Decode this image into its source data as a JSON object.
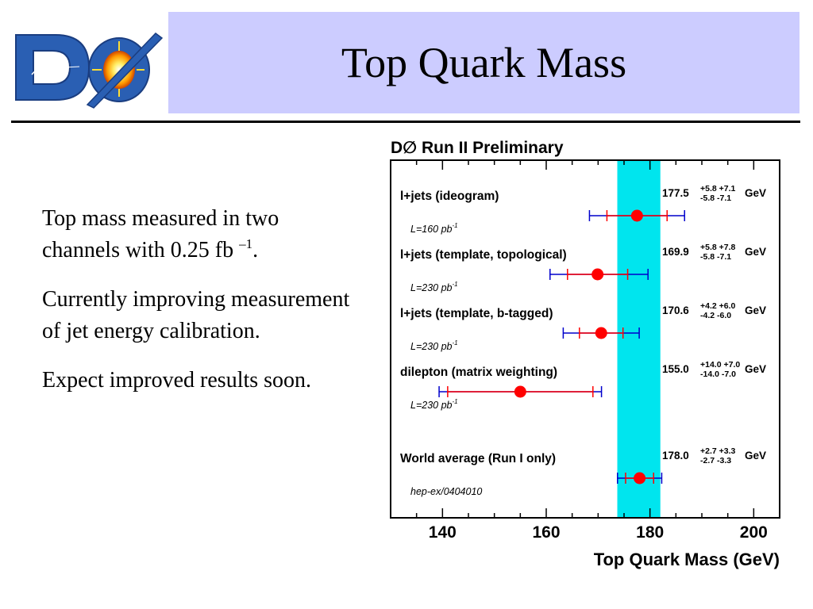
{
  "header": {
    "logo_text": "DØ",
    "title": "Top Quark Mass"
  },
  "bullets": [
    {
      "text": "Top mass measured in two channels with 0.25 fb ",
      "sup": "–1",
      "tail": "."
    },
    {
      "text": "Currently improving measurement of jet energy calibration.",
      "sup": "",
      "tail": ""
    },
    {
      "text": "Expect improved results soon.",
      "sup": "",
      "tail": ""
    }
  ],
  "chart_data": {
    "type": "scatter",
    "title": "D∅ Run II Preliminary",
    "xlabel": "Top Quark Mass (GeV)",
    "xlim": [
      130,
      205
    ],
    "xticks": [
      140,
      160,
      180,
      200
    ],
    "band": {
      "from": 173.7,
      "to": 182.0,
      "color": "#00e5ee"
    },
    "unit_label": "GeV",
    "measurements": [
      {
        "label": "l+jets (ideogram)",
        "lumi": "L=160 pb",
        "lumi_sup": "-1",
        "value": 177.5,
        "value_text": "177.5",
        "stat_plus": 5.8,
        "stat_minus": 5.8,
        "syst_plus": 7.1,
        "syst_minus": 7.1,
        "up_text": "+5.8  +7.1",
        "down_text": "-5.8  -7.1"
      },
      {
        "label": "l+jets (template, topological)",
        "lumi": "L=230 pb",
        "lumi_sup": "-1",
        "value": 169.9,
        "value_text": "169.9",
        "stat_plus": 5.8,
        "stat_minus": 5.8,
        "syst_plus": 7.8,
        "syst_minus": 7.1,
        "up_text": "+5.8  +7.8",
        "down_text": "-5.8  -7.1"
      },
      {
        "label": "l+jets (template, b-tagged)",
        "lumi": "L=230 pb",
        "lumi_sup": "-1",
        "value": 170.6,
        "value_text": "170.6",
        "stat_plus": 4.2,
        "stat_minus": 4.2,
        "syst_plus": 6.0,
        "syst_minus": 6.0,
        "up_text": "+4.2  +6.0",
        "down_text": "-4.2  -6.0"
      },
      {
        "label": "dilepton (matrix weighting)",
        "lumi": "L=230 pb",
        "lumi_sup": "-1",
        "value": 155.0,
        "value_text": "155.0",
        "stat_plus": 14.0,
        "stat_minus": 14.0,
        "syst_plus": 7.0,
        "syst_minus": 7.0,
        "up_text": "+14.0  +7.0",
        "down_text": "-14.0  -7.0"
      },
      {
        "label": "World average (Run I only)",
        "lumi": "hep-ex/0404010",
        "lumi_sup": "",
        "value": 178.0,
        "value_text": "178.0",
        "stat_plus": 2.7,
        "stat_minus": 2.7,
        "syst_plus": 3.3,
        "syst_minus": 3.3,
        "up_text": "+2.7  +3.3",
        "down_text": "-2.7  -3.3"
      }
    ],
    "colors": {
      "point": "#ff0000",
      "stat": "#ff0000",
      "total": "#0000cc",
      "frame": "#000000"
    }
  }
}
